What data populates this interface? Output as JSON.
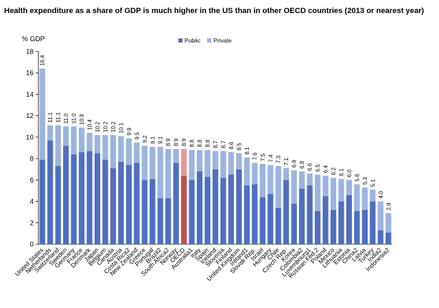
{
  "colors": {
    "public": "#4f6fc0",
    "private": "#9db4e0",
    "oecd_public": "#c0504d",
    "oecd_private": "#e39b98"
  },
  "legend": {
    "public_label": "Public",
    "private_label": "Private"
  },
  "chart_data": {
    "type": "bar",
    "stacked": true,
    "title": "Health expenditure as a share of GDP is much higher in the US than in other OECD countries (2013 or nearest year)",
    "ylabel": "% GDP",
    "xlabel": "",
    "ylim": [
      0,
      18
    ],
    "yticks": [
      0,
      2,
      4,
      6,
      8,
      10,
      12,
      14,
      16,
      18
    ],
    "grid": false,
    "legend_position": "top-center",
    "highlight_category": "OECD",
    "categories": [
      "United States",
      "Netherlands",
      "Switzerland",
      "Sweden",
      "Germany",
      "France",
      "Denmark",
      "Japan",
      "Belgium",
      "Canada",
      "Austria",
      "Costa Rica2",
      "New Zealand",
      "Greece",
      "Portugal",
      "Brazil2",
      "South Africa2",
      "Norway",
      "OECD",
      "Australia1",
      "Italy",
      "Spain",
      "Iceland",
      "Slovenia",
      "Finland",
      "United Kingdom",
      "Ireland1",
      "Slovak Rep.",
      "Israel",
      "Hungary",
      "Chile",
      "Czech Rep.",
      "Korea",
      "Colombia2",
      "Luxembourg1",
      "Russian Fed.2",
      "Poland",
      "Mexico",
      "Lithuania",
      "Estonia",
      "China2",
      "Latvia",
      "Turkey",
      "India2",
      "Indonesia2"
    ],
    "totals": [
      16.4,
      11.1,
      11.1,
      11.0,
      11.0,
      10.9,
      10.4,
      10.2,
      10.2,
      10.2,
      10.1,
      9.9,
      9.5,
      9.2,
      9.1,
      9.1,
      8.9,
      8.9,
      8.9,
      8.8,
      8.8,
      8.8,
      8.7,
      8.7,
      8.6,
      8.5,
      8.1,
      7.6,
      7.5,
      7.4,
      7.3,
      7.1,
      6.9,
      6.8,
      6.6,
      6.5,
      6.4,
      6.2,
      6.1,
      6.0,
      5.6,
      5.3,
      5.1,
      4.0,
      2.9
    ],
    "total_labels": [
      "16.4",
      "11.1",
      "11.1",
      "11.0",
      "11.0",
      "10.9",
      "10.4",
      "10.2",
      "10.2",
      "10.2",
      "10.1",
      "9.9",
      "9.5",
      "9.2",
      "9.1",
      "9.1",
      "8.9",
      "8.9",
      "8.9",
      "8.8",
      "8.8",
      "8.8",
      "8.7",
      "8.7",
      "8.6",
      "8.5",
      "8.1",
      "7.6",
      "7.5",
      "7.4",
      "7.3",
      "7.1",
      "6.9",
      "6.8",
      "6.6",
      "6.5",
      "6.4",
      "6.2",
      "6.1",
      "6.0",
      "5.6",
      "5.3",
      "5.1",
      "4.0",
      "2.9"
    ],
    "series": [
      {
        "name": "Public",
        "values": [
          7.9,
          9.7,
          7.3,
          9.2,
          8.4,
          8.6,
          8.7,
          8.5,
          7.9,
          7.1,
          7.7,
          7.4,
          7.6,
          6.0,
          6.1,
          4.3,
          4.3,
          7.6,
          6.4,
          6.0,
          6.8,
          6.3,
          7.0,
          6.2,
          6.5,
          7.0,
          5.5,
          5.6,
          4.4,
          4.7,
          3.4,
          6.0,
          3.8,
          5.2,
          5.5,
          3.1,
          4.5,
          3.2,
          4.0,
          4.6,
          3.1,
          3.2,
          4.0,
          1.3,
          1.1
        ]
      },
      {
        "name": "Private",
        "values": [
          8.5,
          1.4,
          3.8,
          1.8,
          2.6,
          2.3,
          1.7,
          1.7,
          2.3,
          3.1,
          2.4,
          2.5,
          1.9,
          3.2,
          3.0,
          4.8,
          4.6,
          1.3,
          2.5,
          2.8,
          2.0,
          2.5,
          1.7,
          2.5,
          2.1,
          1.5,
          2.6,
          2.0,
          3.1,
          2.7,
          3.9,
          1.1,
          3.1,
          1.6,
          1.1,
          3.4,
          1.9,
          3.0,
          2.1,
          1.4,
          2.5,
          2.1,
          1.1,
          2.7,
          1.8
        ]
      }
    ]
  }
}
